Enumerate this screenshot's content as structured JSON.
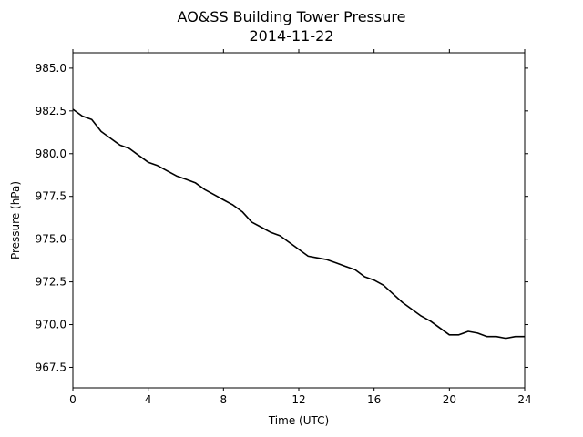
{
  "chart_data": {
    "type": "line",
    "title": "AO&SS Building Tower Pressure",
    "subtitle": "2014-11-22",
    "xlabel": "Time (UTC)",
    "ylabel": "Pressure (hPa)",
    "xlim": [
      0,
      24
    ],
    "ylim": [
      966.3,
      985.9
    ],
    "xticks": [
      0,
      4,
      8,
      12,
      16,
      20,
      24
    ],
    "xtick_labels": [
      "0",
      "4",
      "8",
      "12",
      "16",
      "20",
      "24"
    ],
    "yticks": [
      967.5,
      970.0,
      972.5,
      975.0,
      977.5,
      980.0,
      982.5,
      985.0
    ],
    "ytick_labels": [
      "967.5",
      "970.0",
      "972.5",
      "975.0",
      "977.5",
      "980.0",
      "982.5",
      "985.0"
    ],
    "grid": false,
    "series": [
      {
        "color": "#000000",
        "x": [
          0,
          0.5,
          1,
          1.5,
          2,
          2.5,
          3,
          3.5,
          4,
          4.5,
          5,
          5.5,
          6,
          6.5,
          7,
          7.5,
          8,
          8.5,
          9,
          9.5,
          10,
          10.5,
          11,
          11.5,
          12,
          12.5,
          13,
          13.5,
          14,
          14.5,
          15,
          15.5,
          16,
          16.5,
          17,
          17.5,
          18,
          18.5,
          19,
          19.5,
          20,
          20.5,
          21,
          21.5,
          22,
          22.5,
          23,
          23.5,
          24
        ],
        "y": [
          982.6,
          982.2,
          982.0,
          981.3,
          980.9,
          980.5,
          980.3,
          979.9,
          979.5,
          979.3,
          979.0,
          978.7,
          978.5,
          978.3,
          977.9,
          977.6,
          977.3,
          977.0,
          976.6,
          976.0,
          975.7,
          975.4,
          975.2,
          974.8,
          974.4,
          974.0,
          973.9,
          973.8,
          973.6,
          973.4,
          973.2,
          972.8,
          972.6,
          972.3,
          971.8,
          971.3,
          970.9,
          970.5,
          970.2,
          969.8,
          969.4,
          969.4,
          969.6,
          969.5,
          969.3,
          969.3,
          969.2,
          969.3,
          969.3
        ]
      }
    ]
  }
}
